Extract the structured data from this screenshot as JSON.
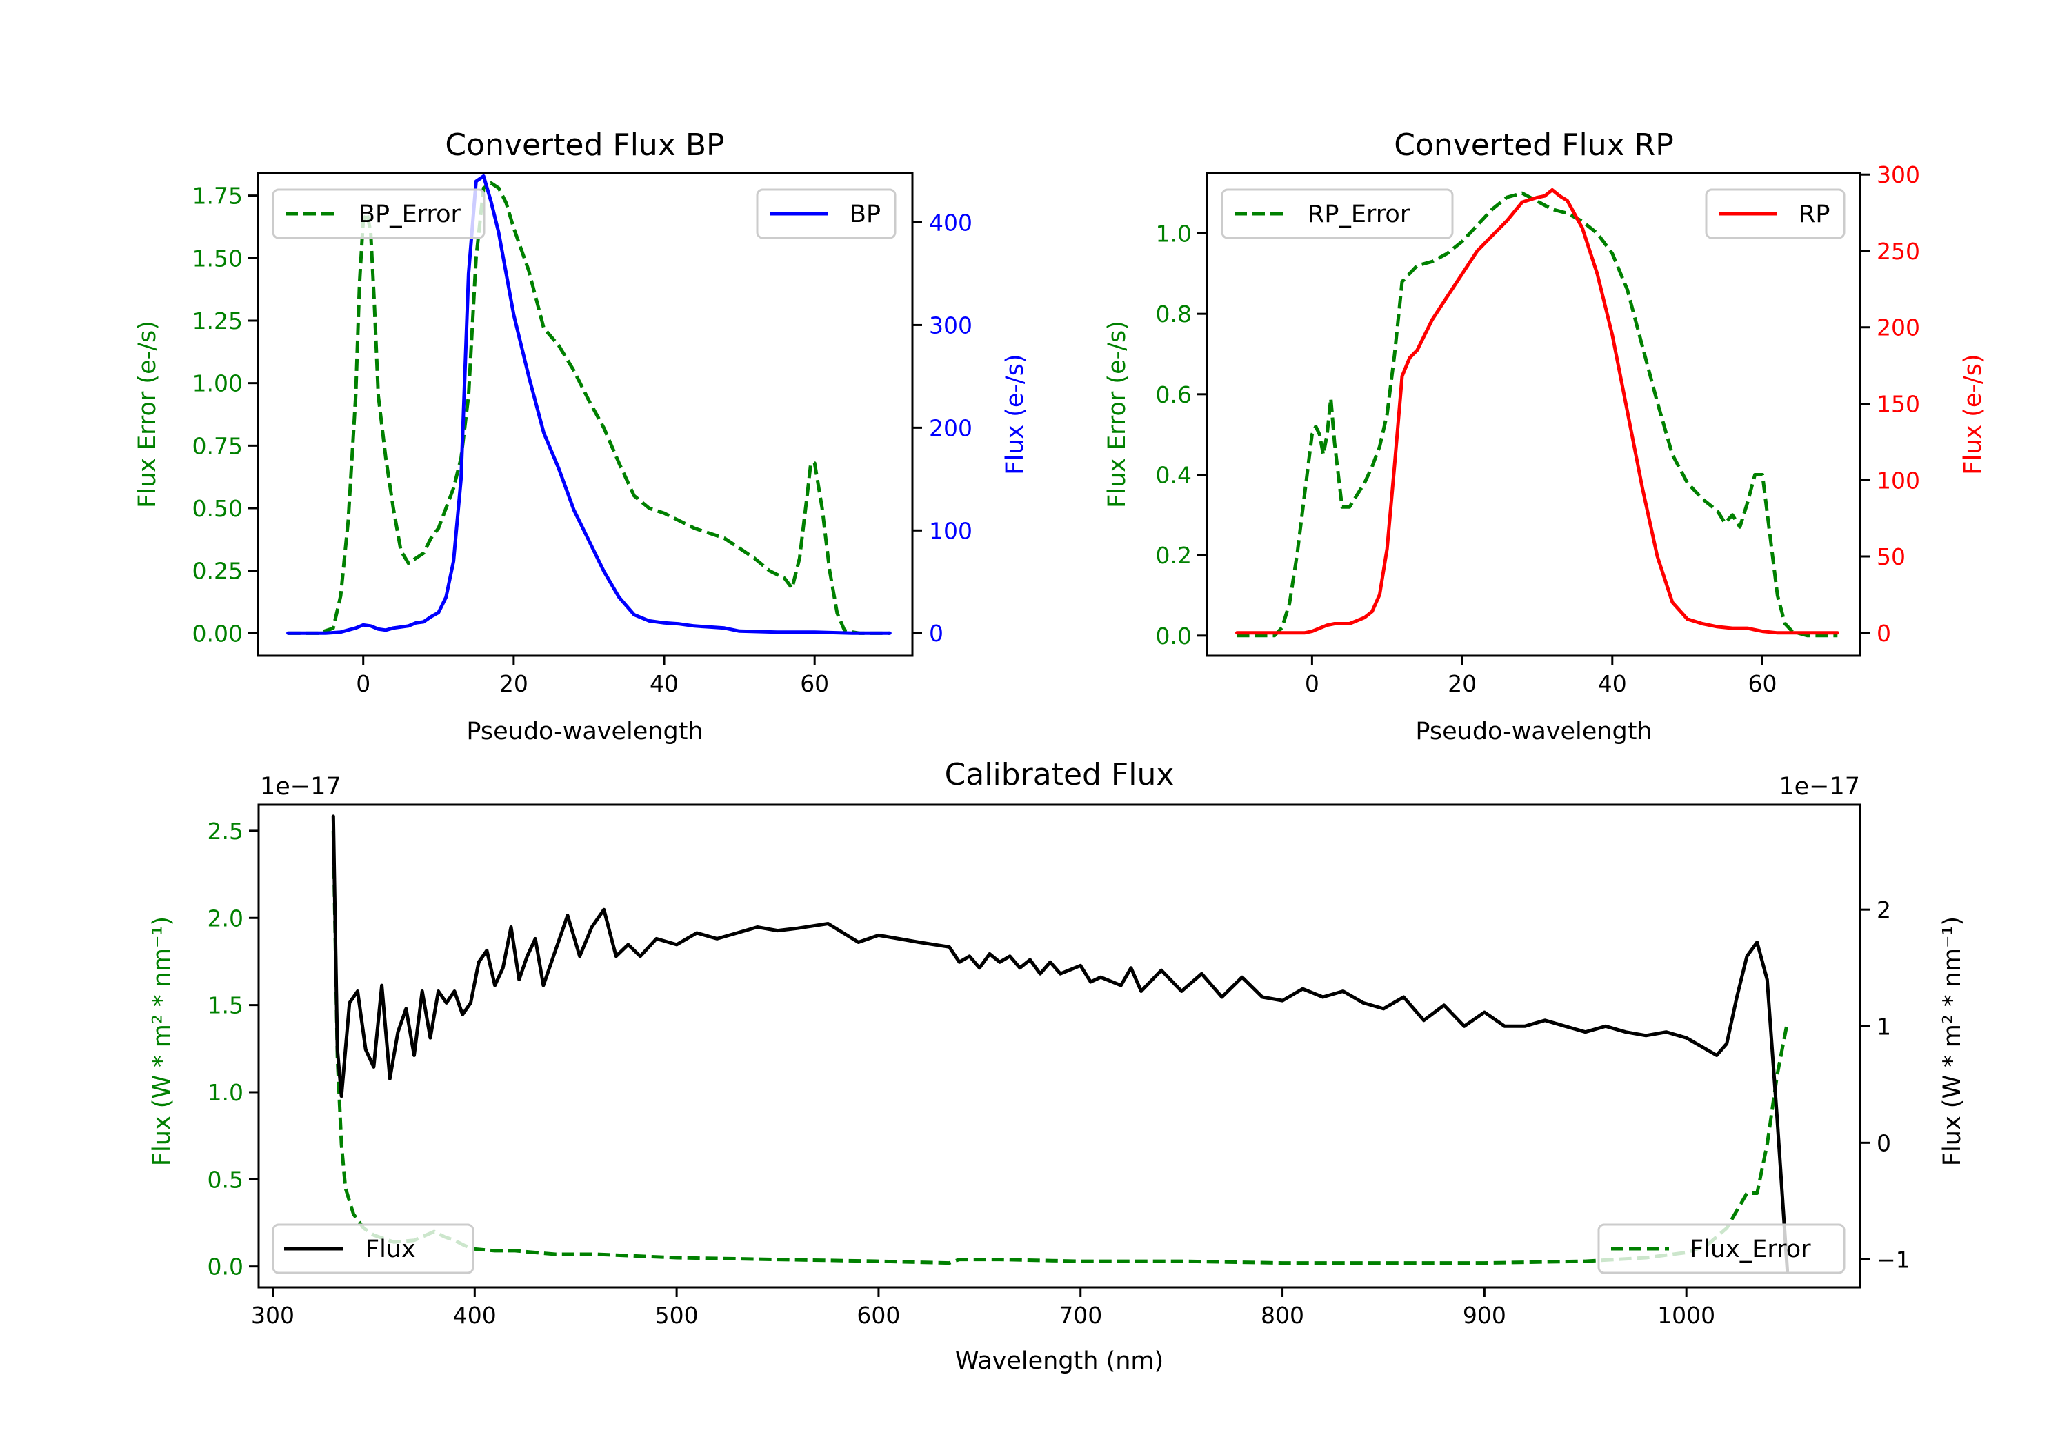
{
  "figure": {
    "background": "#ffffff"
  },
  "colors": {
    "green": "#008000",
    "blue": "#0000ff",
    "red": "#ff0000",
    "black": "#000000"
  },
  "chart_data": [
    {
      "id": "bp",
      "type": "line",
      "title": "Converted Flux BP",
      "xlabel": "Pseudo-wavelength",
      "ylabel_left": "Flux Error (e-/s)",
      "ylabel_right": "Flux (e-/s)",
      "xlim": [
        -14,
        73
      ],
      "xticks": [
        0,
        20,
        40,
        60
      ],
      "ylim_left": [
        -0.09,
        1.84
      ],
      "yticks_left": [
        "0.00",
        "0.25",
        "0.50",
        "0.75",
        "1.00",
        "1.25",
        "1.50",
        "1.75"
      ],
      "ylim_right": [
        -22,
        448
      ],
      "yticks_right": [
        "0",
        "100",
        "200",
        "300",
        "400"
      ],
      "grid": false,
      "legends": [
        {
          "label": "BP_Error",
          "placement": "upper-left"
        },
        {
          "label": "BP",
          "placement": "upper-right"
        }
      ],
      "series": [
        {
          "name": "BP_Error",
          "axis": "left",
          "color": "green",
          "style": "dashed",
          "x": [
            -10,
            -6,
            -4,
            -3,
            -2,
            -1,
            -0.5,
            0,
            0.5,
            1,
            1.5,
            2,
            3,
            4,
            5,
            6,
            8,
            9,
            10,
            11,
            12,
            13,
            14,
            15,
            16,
            17,
            18,
            19,
            20,
            22,
            24,
            26,
            28,
            30,
            32,
            34,
            36,
            38,
            40,
            42,
            44,
            46,
            48,
            50,
            52,
            54,
            56,
            57,
            58,
            59,
            59.5,
            60,
            61,
            62,
            63,
            64,
            66,
            70
          ],
          "values": [
            0,
            0,
            0.02,
            0.15,
            0.45,
            0.95,
            1.4,
            1.65,
            1.68,
            1.6,
            1.3,
            0.95,
            0.7,
            0.5,
            0.33,
            0.28,
            0.32,
            0.38,
            0.42,
            0.5,
            0.58,
            0.7,
            0.95,
            1.5,
            1.78,
            1.8,
            1.78,
            1.72,
            1.62,
            1.45,
            1.22,
            1.15,
            1.05,
            0.93,
            0.82,
            0.68,
            0.55,
            0.5,
            0.48,
            0.45,
            0.42,
            0.4,
            0.38,
            0.34,
            0.3,
            0.25,
            0.22,
            0.18,
            0.3,
            0.55,
            0.68,
            0.68,
            0.5,
            0.25,
            0.08,
            0.01,
            0,
            0
          ]
        },
        {
          "name": "BP",
          "axis": "right",
          "color": "blue",
          "style": "solid",
          "x": [
            -10,
            -5,
            -3,
            -1,
            0,
            1,
            2,
            3,
            4,
            5,
            6,
            7,
            8,
            9,
            10,
            11,
            12,
            13,
            14,
            15,
            16,
            17,
            18,
            19,
            20,
            22,
            24,
            26,
            28,
            30,
            32,
            34,
            36,
            38,
            40,
            42,
            44,
            46,
            48,
            50,
            55,
            60,
            65,
            70
          ],
          "values": [
            0,
            0,
            1,
            5,
            8,
            7,
            4,
            3,
            5,
            6,
            7,
            10,
            11,
            16,
            20,
            35,
            70,
            150,
            350,
            440,
            445,
            420,
            390,
            350,
            310,
            250,
            195,
            160,
            120,
            90,
            60,
            35,
            18,
            12,
            10,
            9,
            7,
            6,
            5,
            2,
            1,
            1,
            0,
            0
          ]
        }
      ]
    },
    {
      "id": "rp",
      "type": "line",
      "title": "Converted Flux RP",
      "xlabel": "Pseudo-wavelength",
      "ylabel_left": "Flux Error (e-/s)",
      "ylabel_right": "Flux (e-/s)",
      "xlim": [
        -14,
        73
      ],
      "xticks": [
        0,
        20,
        40,
        60
      ],
      "ylim_left": [
        -0.05,
        1.15
      ],
      "yticks_left": [
        "0.0",
        "0.2",
        "0.4",
        "0.6",
        "0.8",
        "1.0"
      ],
      "ylim_right": [
        -15,
        301
      ],
      "yticks_right": [
        "0",
        "50",
        "100",
        "150",
        "200",
        "250",
        "300"
      ],
      "grid": false,
      "legends": [
        {
          "label": "RP_Error",
          "placement": "upper-left"
        },
        {
          "label": "RP",
          "placement": "upper-right"
        }
      ],
      "series": [
        {
          "name": "RP_Error",
          "axis": "left",
          "color": "green",
          "style": "dashed",
          "x": [
            -10,
            -5,
            -4,
            -3,
            -2,
            -1,
            0,
            0.5,
            1,
            1.5,
            2,
            2.5,
            3,
            4,
            5,
            6,
            7,
            8,
            9,
            10,
            11,
            12,
            13,
            14,
            16,
            18,
            20,
            22,
            24,
            26,
            28,
            30,
            32,
            34,
            36,
            38,
            40,
            42,
            44,
            46,
            48,
            50,
            52,
            54,
            55,
            56,
            57,
            58,
            59,
            60,
            61,
            62,
            63,
            64,
            66,
            70
          ],
          "values": [
            0,
            0,
            0.02,
            0.08,
            0.2,
            0.35,
            0.5,
            0.52,
            0.5,
            0.45,
            0.5,
            0.59,
            0.48,
            0.32,
            0.32,
            0.35,
            0.38,
            0.42,
            0.47,
            0.55,
            0.7,
            0.88,
            0.9,
            0.92,
            0.93,
            0.95,
            0.98,
            1.02,
            1.06,
            1.09,
            1.1,
            1.08,
            1.06,
            1.05,
            1.03,
            1.0,
            0.95,
            0.86,
            0.72,
            0.58,
            0.45,
            0.38,
            0.34,
            0.31,
            0.28,
            0.3,
            0.27,
            0.33,
            0.4,
            0.4,
            0.25,
            0.1,
            0.03,
            0.01,
            0,
            0
          ]
        },
        {
          "name": "RP",
          "axis": "right",
          "color": "red",
          "style": "solid",
          "x": [
            -10,
            -4,
            -1,
            0,
            1,
            2,
            3,
            4,
            5,
            6,
            7,
            8,
            9,
            10,
            11,
            12,
            13,
            14,
            16,
            18,
            20,
            22,
            24,
            26,
            28,
            30,
            31,
            32,
            33,
            34,
            36,
            38,
            40,
            42,
            44,
            46,
            48,
            50,
            52,
            54,
            56,
            58,
            60,
            62,
            65,
            70
          ],
          "values": [
            0,
            0,
            0,
            1,
            3,
            5,
            6,
            6,
            6,
            8,
            10,
            14,
            25,
            55,
            110,
            168,
            180,
            185,
            205,
            220,
            235,
            250,
            260,
            270,
            282,
            285,
            286,
            290,
            286,
            283,
            265,
            235,
            195,
            145,
            95,
            50,
            20,
            9,
            6,
            4,
            3,
            3,
            1,
            0,
            0,
            0
          ]
        }
      ]
    },
    {
      "id": "calibrated",
      "type": "line",
      "title": "Calibrated Flux",
      "xlabel": "Wavelength (nm)",
      "ylabel_left": "Flux (W * m² * nm⁻¹)",
      "ylabel_right": "Flux (W * m² * nm⁻¹)",
      "offset_left": "1e−17",
      "offset_right": "1e−17",
      "xlim": [
        293,
        1086
      ],
      "xticks": [
        300,
        400,
        500,
        600,
        700,
        800,
        900,
        1000
      ],
      "ylim_left": [
        -0.12,
        2.65
      ],
      "yticks_left": [
        "0.0",
        "0.5",
        "1.0",
        "1.5",
        "2.0",
        "2.5"
      ],
      "ylim_right": [
        -1.24,
        2.9
      ],
      "yticks_right": [
        "−1",
        "0",
        "1",
        "2"
      ],
      "grid": false,
      "legends": [
        {
          "label": "Flux",
          "placement": "lower-left"
        },
        {
          "label": "Flux_Error",
          "placement": "lower-right"
        }
      ],
      "series": [
        {
          "name": "Flux_Error",
          "axis": "left",
          "color": "green",
          "style": "dashed",
          "x": [
            330,
            332,
            334,
            336,
            340,
            345,
            350,
            360,
            370,
            380,
            385,
            390,
            395,
            400,
            410,
            420,
            430,
            440,
            450,
            460,
            480,
            500,
            550,
            600,
            635,
            640,
            660,
            700,
            750,
            800,
            850,
            900,
            950,
            980,
            1000,
            1010,
            1020,
            1025,
            1030,
            1035,
            1040,
            1045,
            1050
          ],
          "values": [
            2.5,
            1.2,
            0.7,
            0.45,
            0.3,
            0.22,
            0.18,
            0.14,
            0.15,
            0.2,
            0.17,
            0.15,
            0.12,
            0.1,
            0.09,
            0.09,
            0.08,
            0.07,
            0.07,
            0.07,
            0.06,
            0.05,
            0.04,
            0.03,
            0.02,
            0.04,
            0.04,
            0.03,
            0.03,
            0.02,
            0.02,
            0.02,
            0.03,
            0.05,
            0.08,
            0.12,
            0.22,
            0.32,
            0.42,
            0.42,
            0.7,
            1.1,
            1.4
          ]
        },
        {
          "name": "Flux",
          "axis": "right",
          "color": "black",
          "style": "solid",
          "x": [
            330,
            332,
            334,
            338,
            342,
            346,
            350,
            354,
            358,
            362,
            366,
            370,
            374,
            378,
            382,
            386,
            390,
            394,
            398,
            402,
            406,
            410,
            414,
            418,
            422,
            426,
            430,
            434,
            440,
            446,
            452,
            458,
            464,
            470,
            476,
            482,
            490,
            500,
            510,
            520,
            530,
            540,
            550,
            560,
            575,
            590,
            600,
            610,
            620,
            635,
            640,
            645,
            650,
            655,
            660,
            665,
            670,
            675,
            680,
            685,
            690,
            700,
            705,
            710,
            720,
            725,
            730,
            740,
            750,
            760,
            770,
            780,
            790,
            800,
            810,
            820,
            830,
            840,
            850,
            860,
            870,
            880,
            890,
            900,
            910,
            920,
            930,
            940,
            950,
            960,
            970,
            980,
            990,
            1000,
            1010,
            1015,
            1020,
            1025,
            1030,
            1035,
            1040,
            1045,
            1050
          ],
          "values": [
            2.8,
            0.8,
            0.4,
            1.2,
            1.3,
            0.8,
            0.65,
            1.35,
            0.55,
            0.95,
            1.15,
            0.75,
            1.3,
            0.9,
            1.3,
            1.2,
            1.3,
            1.1,
            1.2,
            1.55,
            1.65,
            1.35,
            1.5,
            1.85,
            1.4,
            1.6,
            1.75,
            1.35,
            1.65,
            1.95,
            1.6,
            1.85,
            2.0,
            1.6,
            1.7,
            1.6,
            1.75,
            1.7,
            1.8,
            1.75,
            1.8,
            1.85,
            1.82,
            1.84,
            1.88,
            1.72,
            1.78,
            1.75,
            1.72,
            1.68,
            1.55,
            1.6,
            1.5,
            1.62,
            1.55,
            1.6,
            1.5,
            1.57,
            1.45,
            1.55,
            1.45,
            1.52,
            1.38,
            1.42,
            1.35,
            1.5,
            1.3,
            1.48,
            1.3,
            1.45,
            1.25,
            1.42,
            1.25,
            1.22,
            1.32,
            1.25,
            1.3,
            1.2,
            1.15,
            1.25,
            1.05,
            1.18,
            1.0,
            1.12,
            1.0,
            1.0,
            1.05,
            1.0,
            0.95,
            1.0,
            0.95,
            0.92,
            0.95,
            0.9,
            0.8,
            0.75,
            0.85,
            1.25,
            1.6,
            1.72,
            1.4,
            0.2,
            -1.1
          ]
        }
      ]
    }
  ]
}
